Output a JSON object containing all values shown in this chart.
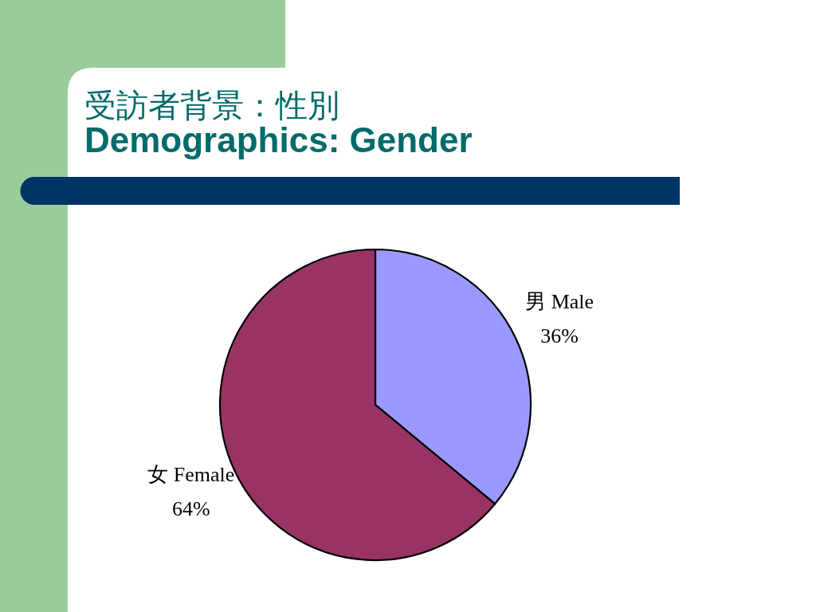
{
  "chart_data": {
    "type": "pie",
    "title": "受訪者背景：性別",
    "subtitle": "Demographics: Gender",
    "categories": [
      "男 Male",
      "女 Female"
    ],
    "values": [
      36,
      64
    ],
    "colors": [
      "#9999ff",
      "#993366"
    ],
    "value_labels": [
      "36%",
      "64%"
    ]
  }
}
